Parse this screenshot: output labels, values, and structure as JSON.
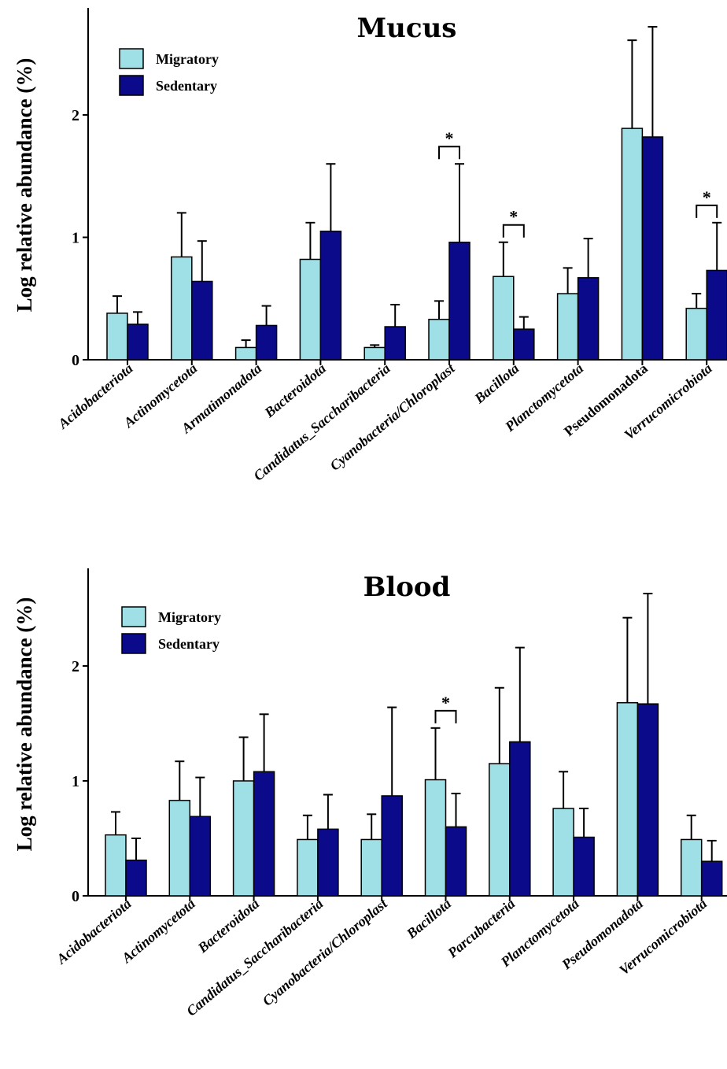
{
  "colors": {
    "migratory": "#9ee0e6",
    "sedentary": "#0a0a8a"
  },
  "chart_data": [
    {
      "type": "bar",
      "title": "Mucus",
      "ylabel": "Log relative abundance (%)",
      "ylim": [
        0,
        2.9
      ],
      "yticks": [
        "0",
        "1",
        "2"
      ],
      "legend_position": "top-left",
      "grid": false,
      "categories": [
        "Acidobacteriota",
        "Actinomycetota",
        "Armatimonadota",
        "Bacteroidota",
        "Candidatus_Saccharibacteria",
        "Cyanobacteria/Chloroplast",
        "Bacillota",
        "Planctomycetota",
        "Pseudomonadota",
        "Verrucomicrobiota"
      ],
      "italic": [
        true,
        true,
        true,
        true,
        true,
        true,
        true,
        true,
        false,
        true
      ],
      "series": [
        {
          "name": "Migratory",
          "values": [
            0.38,
            0.84,
            0.1,
            0.82,
            0.1,
            0.33,
            0.68,
            0.54,
            1.89,
            0.42
          ],
          "errors": [
            0.14,
            0.36,
            0.06,
            0.3,
            0.02,
            0.15,
            0.28,
            0.21,
            0.72,
            0.12
          ]
        },
        {
          "name": "Sedentary",
          "values": [
            0.29,
            0.64,
            0.28,
            1.05,
            0.27,
            0.96,
            0.25,
            0.67,
            1.82,
            0.73
          ],
          "errors": [
            0.1,
            0.33,
            0.16,
            0.55,
            0.18,
            0.64,
            0.1,
            0.32,
            0.9,
            0.39
          ]
        }
      ],
      "significance": [
        {
          "category_index": 5,
          "label": "*"
        },
        {
          "category_index": 6,
          "label": "*"
        },
        {
          "category_index": 9,
          "label": "*"
        }
      ]
    },
    {
      "type": "bar",
      "title": "Blood",
      "ylabel": "Log relative abundance (%)",
      "ylim": [
        0,
        2.9
      ],
      "yticks": [
        "0",
        "1",
        "2"
      ],
      "legend_position": "top-left",
      "grid": false,
      "categories": [
        "Acidobacteriota",
        "Actinomycetota",
        "Bacteroidota",
        "Candidatus_Saccharibacteria",
        "Cyanobacteria/Chloroplast",
        "Bacillota",
        "Parcubacteria",
        "Planctomycetota",
        "Pseudomonadota",
        "Verrucomicrobiota"
      ],
      "italic": [
        true,
        true,
        true,
        true,
        true,
        true,
        true,
        true,
        true,
        true
      ],
      "series": [
        {
          "name": "Migratory",
          "values": [
            0.53,
            0.83,
            1.0,
            0.49,
            0.49,
            1.01,
            1.15,
            0.76,
            1.68,
            0.49
          ],
          "errors": [
            0.2,
            0.34,
            0.38,
            0.21,
            0.22,
            0.45,
            0.66,
            0.32,
            0.74,
            0.21
          ]
        },
        {
          "name": "Sedentary",
          "values": [
            0.31,
            0.69,
            1.08,
            0.58,
            0.87,
            0.6,
            1.34,
            0.51,
            1.67,
            0.3
          ],
          "errors": [
            0.19,
            0.34,
            0.5,
            0.3,
            0.77,
            0.29,
            0.82,
            0.25,
            0.96,
            0.18
          ]
        }
      ],
      "significance": [
        {
          "category_index": 5,
          "label": "*"
        }
      ]
    }
  ]
}
